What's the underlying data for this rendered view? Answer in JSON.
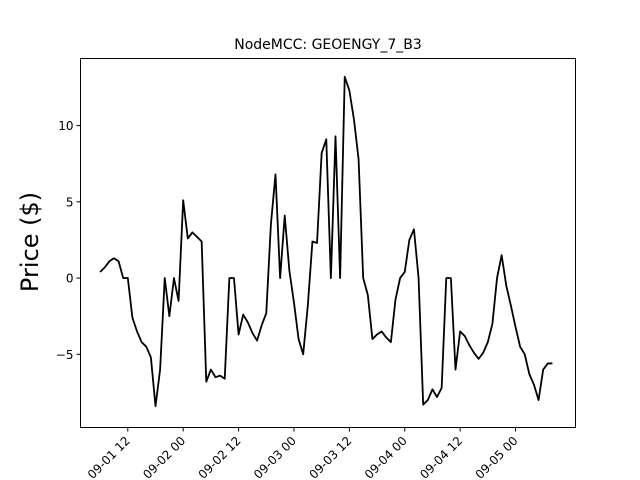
{
  "chart_data": {
    "type": "line",
    "title": "NodeMCC: GEOENGY_7_B3",
    "xlabel": "",
    "ylabel": "Price ($)",
    "x_tick_labels": [
      "09-01 12",
      "09-02 00",
      "09-02 12",
      "09-03 00",
      "09-03 12",
      "09-04 00",
      "09-04 12",
      "09-05 00"
    ],
    "y_tick_labels": [
      "−5",
      "0",
      "5",
      "10"
    ],
    "y_ticks": [
      -5,
      0,
      5,
      10
    ],
    "ylim": [
      -9.8,
      14.4
    ],
    "xlim": [
      "2013-09-01 01:45",
      "2013-09-05 13:00"
    ],
    "grid": false,
    "legend": "none",
    "line_color": "#000000",
    "series": [
      {
        "x": [
          "2013-09-01 06:00",
          "2013-09-01 07:00",
          "2013-09-01 08:00",
          "2013-09-01 09:00",
          "2013-09-01 10:00",
          "2013-09-01 11:00",
          "2013-09-01 12:00",
          "2013-09-01 13:00",
          "2013-09-01 14:00",
          "2013-09-01 15:00",
          "2013-09-01 16:00",
          "2013-09-01 17:00",
          "2013-09-01 18:00",
          "2013-09-01 19:00",
          "2013-09-01 20:00",
          "2013-09-01 21:00",
          "2013-09-01 22:00",
          "2013-09-01 23:00",
          "2013-09-02 00:00",
          "2013-09-02 01:00",
          "2013-09-02 02:00",
          "2013-09-02 03:00",
          "2013-09-02 04:00",
          "2013-09-02 05:00",
          "2013-09-02 06:00",
          "2013-09-02 07:00",
          "2013-09-02 08:00",
          "2013-09-02 09:00",
          "2013-09-02 10:00",
          "2013-09-02 11:00",
          "2013-09-02 12:00",
          "2013-09-02 13:00",
          "2013-09-02 14:00",
          "2013-09-02 15:00",
          "2013-09-02 16:00",
          "2013-09-02 17:00",
          "2013-09-02 18:00",
          "2013-09-02 19:00",
          "2013-09-02 20:00",
          "2013-09-02 21:00",
          "2013-09-02 22:00",
          "2013-09-02 23:00",
          "2013-09-03 00:00",
          "2013-09-03 01:00",
          "2013-09-03 02:00",
          "2013-09-03 03:00",
          "2013-09-03 04:00",
          "2013-09-03 05:00",
          "2013-09-03 06:00",
          "2013-09-03 07:00",
          "2013-09-03 08:00",
          "2013-09-03 09:00",
          "2013-09-03 10:00",
          "2013-09-03 11:00",
          "2013-09-03 12:00",
          "2013-09-03 13:00",
          "2013-09-03 14:00",
          "2013-09-03 15:00",
          "2013-09-03 16:00",
          "2013-09-03 17:00",
          "2013-09-03 18:00",
          "2013-09-03 19:00",
          "2013-09-03 20:00",
          "2013-09-03 21:00",
          "2013-09-03 22:00",
          "2013-09-03 23:00",
          "2013-09-04 00:00",
          "2013-09-04 01:00",
          "2013-09-04 02:00",
          "2013-09-04 03:00",
          "2013-09-04 04:00",
          "2013-09-04 05:00",
          "2013-09-04 06:00",
          "2013-09-04 07:00",
          "2013-09-04 08:00",
          "2013-09-04 09:00",
          "2013-09-04 10:00",
          "2013-09-04 11:00",
          "2013-09-04 12:00",
          "2013-09-04 13:00",
          "2013-09-04 14:00",
          "2013-09-04 15:00",
          "2013-09-04 16:00",
          "2013-09-04 17:00",
          "2013-09-04 18:00",
          "2013-09-04 19:00",
          "2013-09-04 20:00",
          "2013-09-04 21:00",
          "2013-09-04 22:00",
          "2013-09-04 23:00",
          "2013-09-05 00:00",
          "2013-09-05 01:00",
          "2013-09-05 02:00",
          "2013-09-05 03:00",
          "2013-09-05 04:00",
          "2013-09-05 05:00",
          "2013-09-05 06:00",
          "2013-09-05 07:00",
          "2013-09-05 08:00"
        ],
        "values": [
          0.4,
          0.7,
          1.1,
          1.3,
          1.1,
          0.0,
          0.0,
          -2.6,
          -3.5,
          -4.2,
          -4.5,
          -5.2,
          -8.4,
          -6.0,
          0.0,
          -2.5,
          0.0,
          -1.5,
          5.1,
          2.6,
          3.0,
          2.7,
          2.4,
          -6.8,
          -6.0,
          -6.5,
          -6.4,
          -6.6,
          0.0,
          0.0,
          -3.7,
          -2.4,
          -2.9,
          -3.6,
          -4.1,
          -3.1,
          -2.3,
          3.5,
          6.8,
          0.0,
          4.1,
          0.5,
          -1.6,
          -4.0,
          -5.0,
          -1.8,
          2.4,
          2.3,
          8.2,
          9.1,
          0.0,
          9.3,
          0.0,
          13.2,
          12.3,
          10.4,
          7.8,
          0.0,
          -1.1,
          -4.0,
          -3.7,
          -3.5,
          -3.9,
          -4.2,
          -1.4,
          0.0,
          0.4,
          2.5,
          3.2,
          0.0,
          -8.3,
          -8.0,
          -7.3,
          -7.8,
          -7.2,
          0.0,
          0.0,
          -6.0,
          -3.5,
          -3.8,
          -4.4,
          -4.9,
          -5.3,
          -4.9,
          -4.2,
          -3.0,
          0.0,
          1.5,
          -0.5,
          -1.8,
          -3.2,
          -4.5,
          -5.0,
          -6.3,
          -7.0,
          -8.0,
          -6.0,
          -5.6,
          -5.6
        ]
      }
    ]
  }
}
